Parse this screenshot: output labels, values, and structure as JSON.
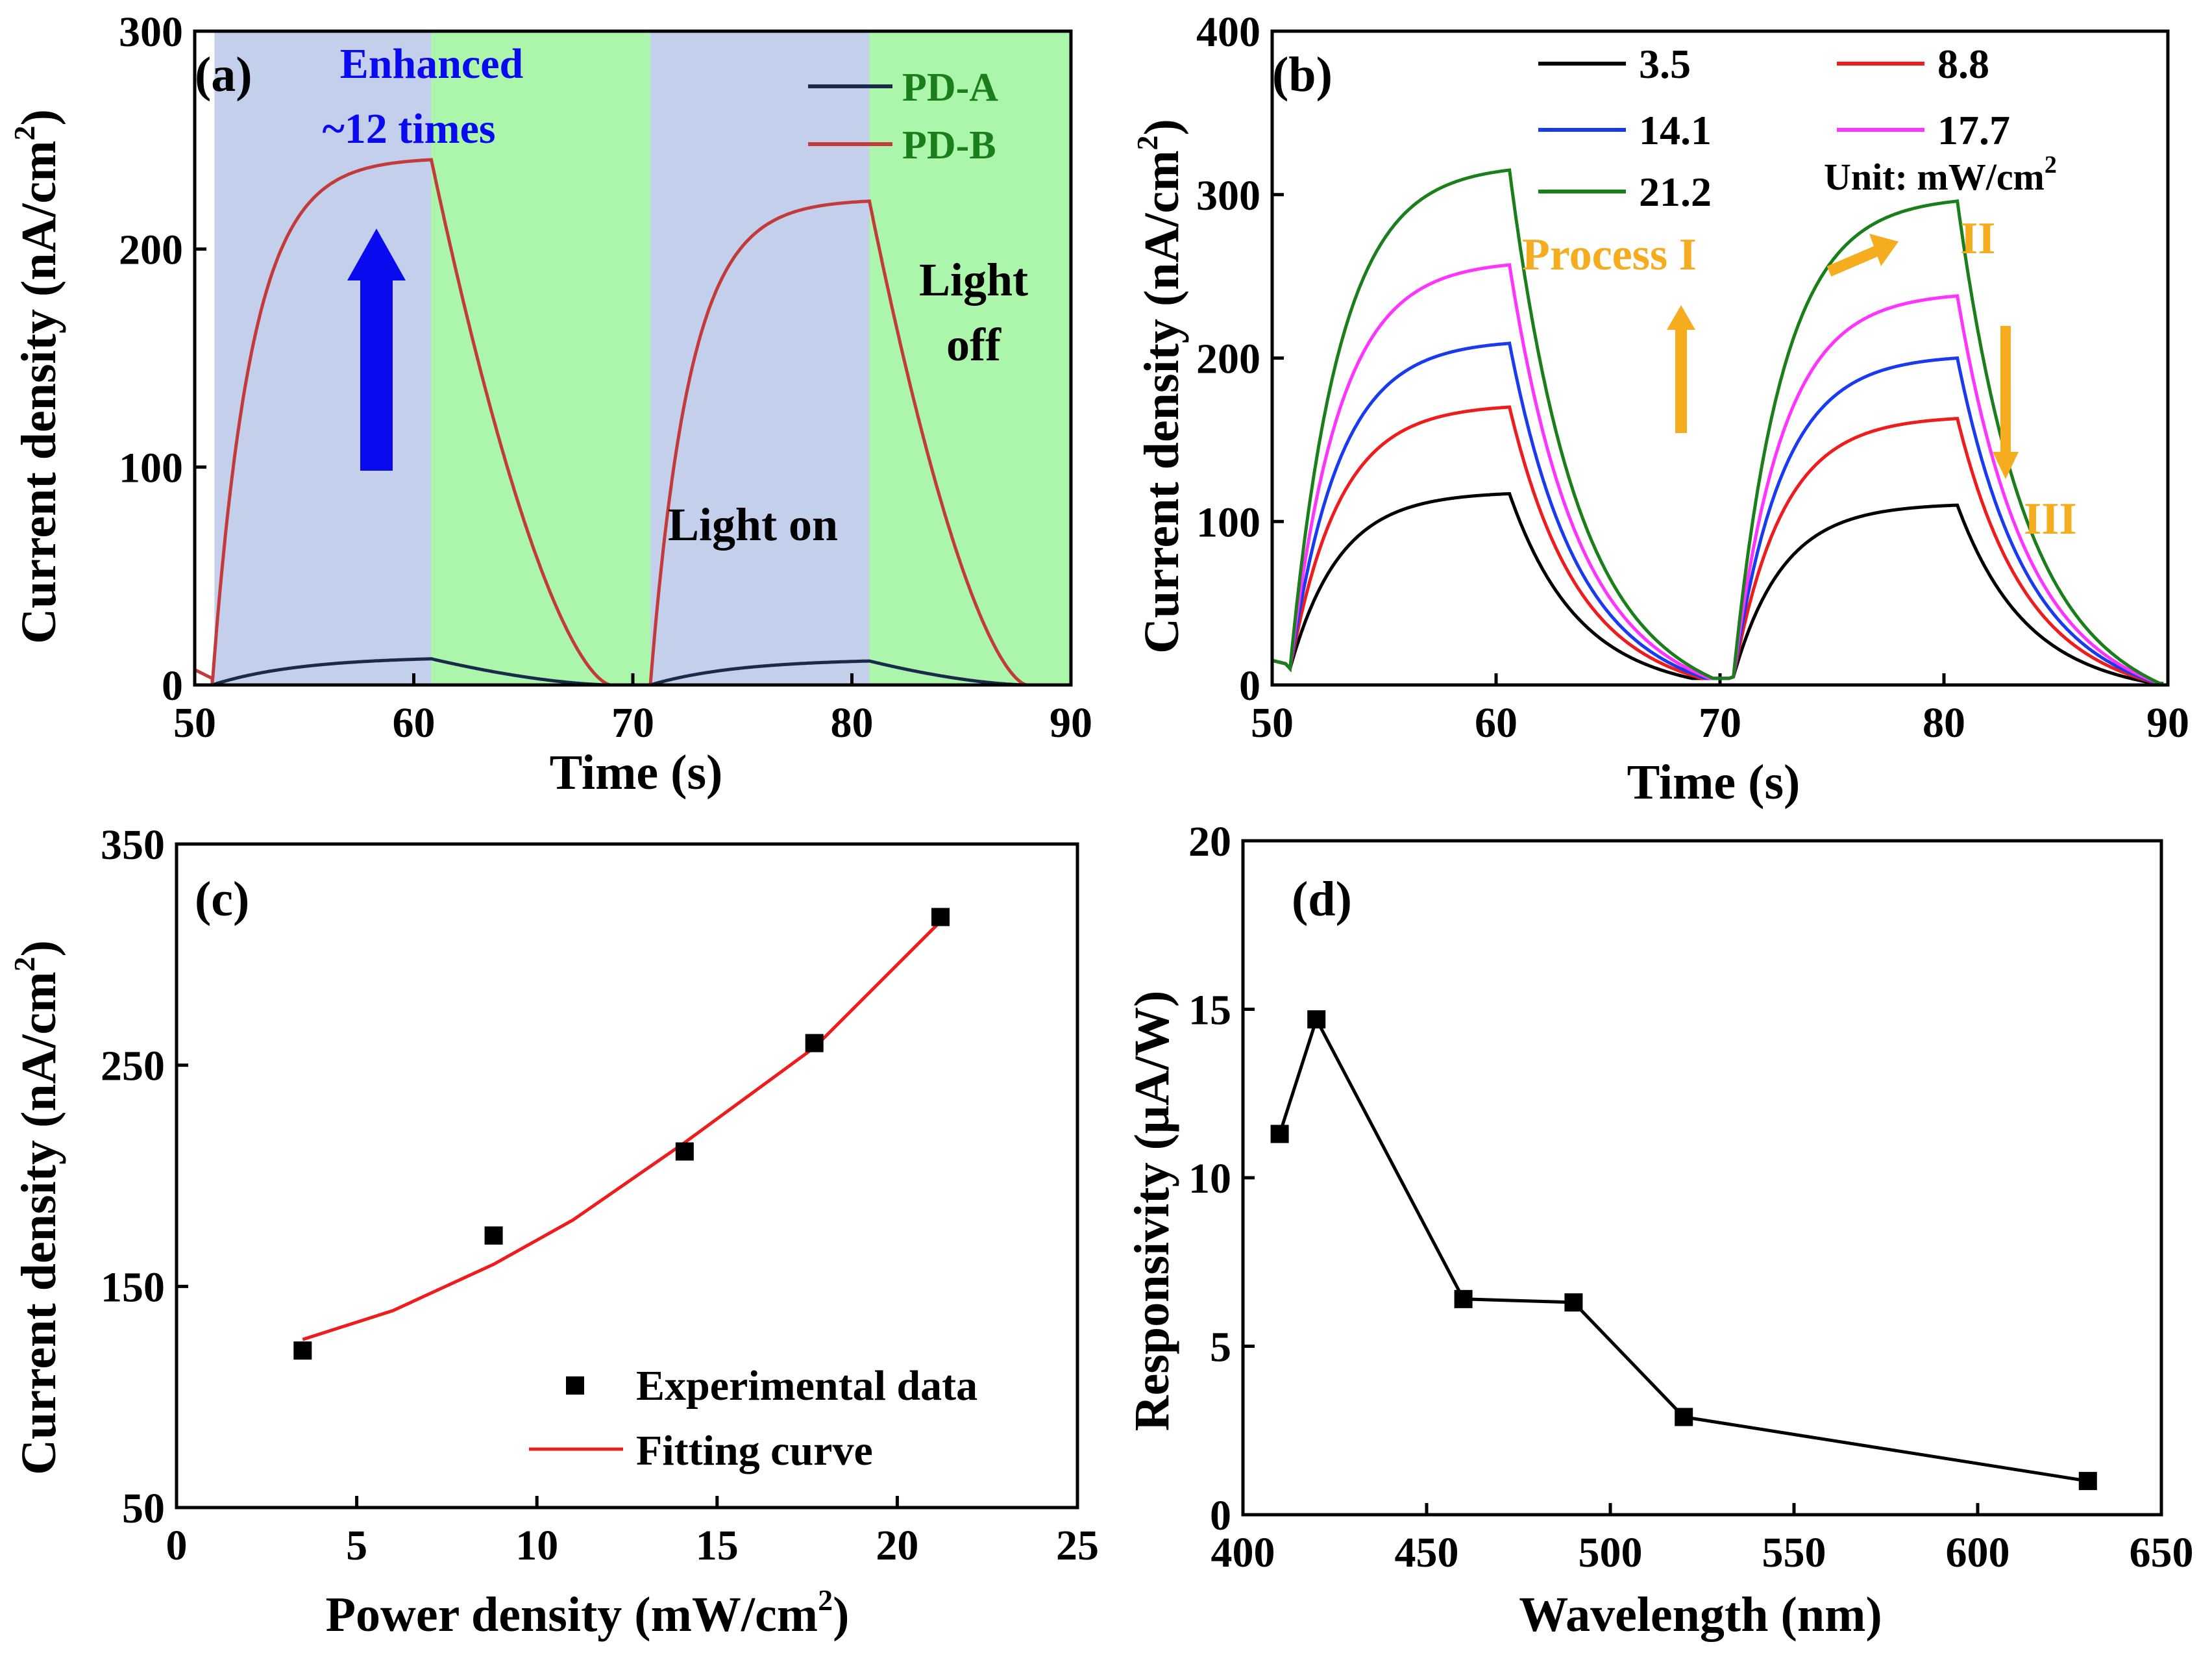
{
  "colors": {
    "axis": "#000000",
    "light_on_bg": "#c4d0eb",
    "light_off_bg": "#abf6ab",
    "pd_a": "#1a2a4a",
    "pd_b": "#c23a3a",
    "blue_arrow": "#0a0aee",
    "orange": "#f5ad1f",
    "series_3_5": "#000000",
    "series_8_8": "#ee1c1c",
    "series_14_1": "#1a3af0",
    "series_17_7": "#ff33ff",
    "series_21_2": "#1a7f1a",
    "fit_line": "#ee1c1c",
    "marker": "#000000"
  },
  "chart_data": [
    {
      "id": "a",
      "type": "line",
      "panel_label": "(a)",
      "xlabel": "Time (s)",
      "ylabel": "Current density (nA/cm",
      "ylabel_sup": "2",
      "ylabel_end": ")",
      "xlim": [
        50,
        90
      ],
      "ylim": [
        0,
        300
      ],
      "xticks": [
        50,
        60,
        70,
        80,
        90
      ],
      "yticks": [
        0,
        100,
        200,
        300
      ],
      "xtick_labels": [
        "50",
        "60",
        "70",
        "80",
        "90"
      ],
      "ytick_labels": [
        "0",
        "100",
        "200",
        "300"
      ],
      "regions": [
        {
          "state": "on",
          "x": [
            50.9,
            60.8
          ]
        },
        {
          "state": "off",
          "x": [
            60.8,
            70.8
          ]
        },
        {
          "state": "on",
          "x": [
            70.8,
            80.8
          ]
        },
        {
          "state": "off",
          "x": [
            80.8,
            90
          ]
        }
      ],
      "series": [
        {
          "name": "PD-A",
          "color_key": "pd_a",
          "on_start": [
            50.8,
            70.8
          ],
          "off_start": [
            60.8,
            80.8
          ],
          "peaks": [
            12,
            11
          ],
          "tau_on": 4.0,
          "tau_off": 3.5,
          "decay_to": [
            69.0,
            88.0
          ]
        },
        {
          "name": "PD-B",
          "color_key": "pd_b",
          "on_start": [
            50.8,
            70.8
          ],
          "off_start": [
            60.8,
            80.8
          ],
          "peaks": [
            241,
            222
          ],
          "tau_on": 1.8,
          "tau_off": 3.4,
          "decay_to": [
            69.0,
            88.0
          ]
        }
      ],
      "annotations": {
        "enhanced_line1": "Enhanced",
        "enhanced_line2": "~12 times",
        "light_on": "Light on",
        "light_off_line1": "Light",
        "light_off_line2": "off"
      }
    },
    {
      "id": "b",
      "type": "line",
      "panel_label": "(b)",
      "xlabel": "Time (s)",
      "ylabel": "Current density (nA/cm",
      "ylabel_sup": "2",
      "ylabel_end": ")",
      "xlim": [
        50,
        90
      ],
      "ylim": [
        0,
        400
      ],
      "xticks": [
        50,
        60,
        70,
        80,
        90
      ],
      "yticks": [
        0,
        100,
        200,
        300,
        400
      ],
      "xtick_labels": [
        "50",
        "60",
        "70",
        "80",
        "90"
      ],
      "ytick_labels": [
        "0",
        "100",
        "200",
        "300",
        "400"
      ],
      "series": [
        {
          "name": "3.5",
          "color_key": "series_3_5",
          "peaks": [
            117,
            110
          ]
        },
        {
          "name": "8.8",
          "color_key": "series_8_8",
          "peaks": [
            170,
            163
          ]
        },
        {
          "name": "14.1",
          "color_key": "series_14_1",
          "peaks": [
            209,
            200
          ]
        },
        {
          "name": "17.7",
          "color_key": "series_17_7",
          "peaks": [
            257,
            238
          ]
        },
        {
          "name": "21.2",
          "color_key": "series_21_2",
          "peaks": [
            315,
            296
          ]
        }
      ],
      "on_start": [
        50.8,
        70.6
      ],
      "off_start": [
        60.6,
        80.6
      ],
      "baseline_start": 15,
      "unit_label": "Unit: mW/cm",
      "unit_sup": "2",
      "annotations": {
        "process_1": "Process I",
        "process_2": "II",
        "process_3": "III"
      }
    },
    {
      "id": "c",
      "type": "scatter",
      "panel_label": "(c)",
      "xlabel": "Power density (mW/cm",
      "xlabel_sup": "2",
      "xlabel_end": ")",
      "ylabel": "Current density (nA/cm",
      "ylabel_sup": "2",
      "ylabel_end": ")",
      "xlim": [
        0,
        25
      ],
      "ylim": [
        50,
        350
      ],
      "xticks": [
        0,
        5,
        10,
        15,
        20,
        25
      ],
      "yticks": [
        50,
        150,
        250,
        350
      ],
      "xtick_labels": [
        "0",
        "5",
        "10",
        "15",
        "20",
        "25"
      ],
      "ytick_labels": [
        "50",
        "150",
        "250",
        "350"
      ],
      "points": {
        "x": [
          3.5,
          8.8,
          14.1,
          17.7,
          21.2
        ],
        "y": [
          121,
          173,
          211,
          260,
          317
        ]
      },
      "fit": {
        "x": [
          3.5,
          6,
          8.8,
          11,
          14.1,
          17.7,
          21.2
        ],
        "y": [
          126,
          139,
          160,
          180,
          215,
          258,
          315
        ]
      },
      "legend": [
        "Experimental data",
        "Fitting curve"
      ]
    },
    {
      "id": "d",
      "type": "line",
      "panel_label": "(d)",
      "xlabel": "Wavelength (nm)",
      "ylabel": "Responsivity (μA/W)",
      "xlim": [
        400,
        650
      ],
      "ylim": [
        0,
        20
      ],
      "xticks": [
        400,
        450,
        500,
        550,
        600,
        650
      ],
      "yticks": [
        0,
        5,
        10,
        15,
        20
      ],
      "xtick_labels": [
        "400",
        "450",
        "500",
        "550",
        "600",
        "650"
      ],
      "ytick_labels": [
        "0",
        "5",
        "10",
        "15",
        "20"
      ],
      "x": [
        410,
        420,
        460,
        490,
        520,
        630
      ],
      "y": [
        11.3,
        14.7,
        6.4,
        6.3,
        2.9,
        1.0
      ]
    }
  ]
}
